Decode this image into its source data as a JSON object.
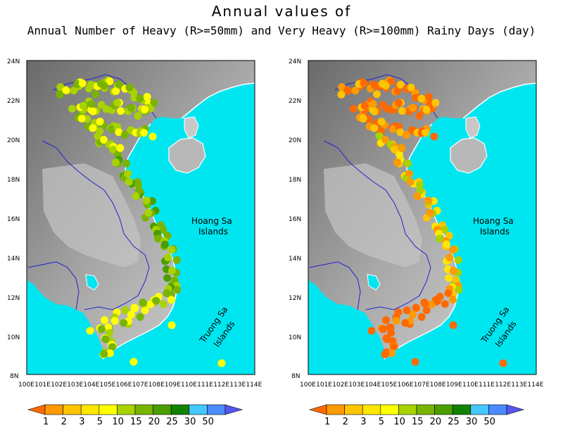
{
  "title": "Annual values of",
  "subtitle": "Annual Number of Heavy (R>=50mm) and Very Heavy (R>=100mm) Rainy Days (day)",
  "lat_ticks": [
    "24N",
    "22N",
    "20N",
    "18N",
    "16N",
    "14N",
    "12N",
    "10N",
    "8N"
  ],
  "lon_ticks": [
    "100E",
    "101E",
    "102E",
    "103E",
    "104E",
    "105E",
    "106E",
    "107E",
    "108E",
    "109E",
    "110E",
    "111E",
    "112E",
    "113E",
    "114E"
  ],
  "regions": {
    "hoang_sa_1": "Hoang Sa",
    "hoang_sa_2": "Islands",
    "truong_sa_1": "Truong Sa",
    "truong_sa_2": "Islands"
  },
  "colorbar": {
    "labels": [
      "1",
      "2",
      "3",
      "5",
      "10",
      "15",
      "20",
      "25",
      "30",
      "50"
    ],
    "colors": [
      "#ff6a00",
      "#ff9a00",
      "#ffc400",
      "#ffe600",
      "#ffff00",
      "#a8d200",
      "#78b400",
      "#4a9e00",
      "#118200",
      "#45c8ff",
      "#4a8cff",
      "#5555f0"
    ]
  },
  "colors": {
    "sea": "#00e6f0",
    "border": "#2222cc"
  },
  "panels": [
    {
      "name": "heavy",
      "dominant": [
        "#a8d200",
        "#78b400",
        "#ffff00",
        "#4a9e00"
      ]
    },
    {
      "name": "very-heavy",
      "dominant": [
        "#ff6a00",
        "#ff9a00",
        "#ffc400",
        "#ffe600"
      ]
    }
  ]
}
